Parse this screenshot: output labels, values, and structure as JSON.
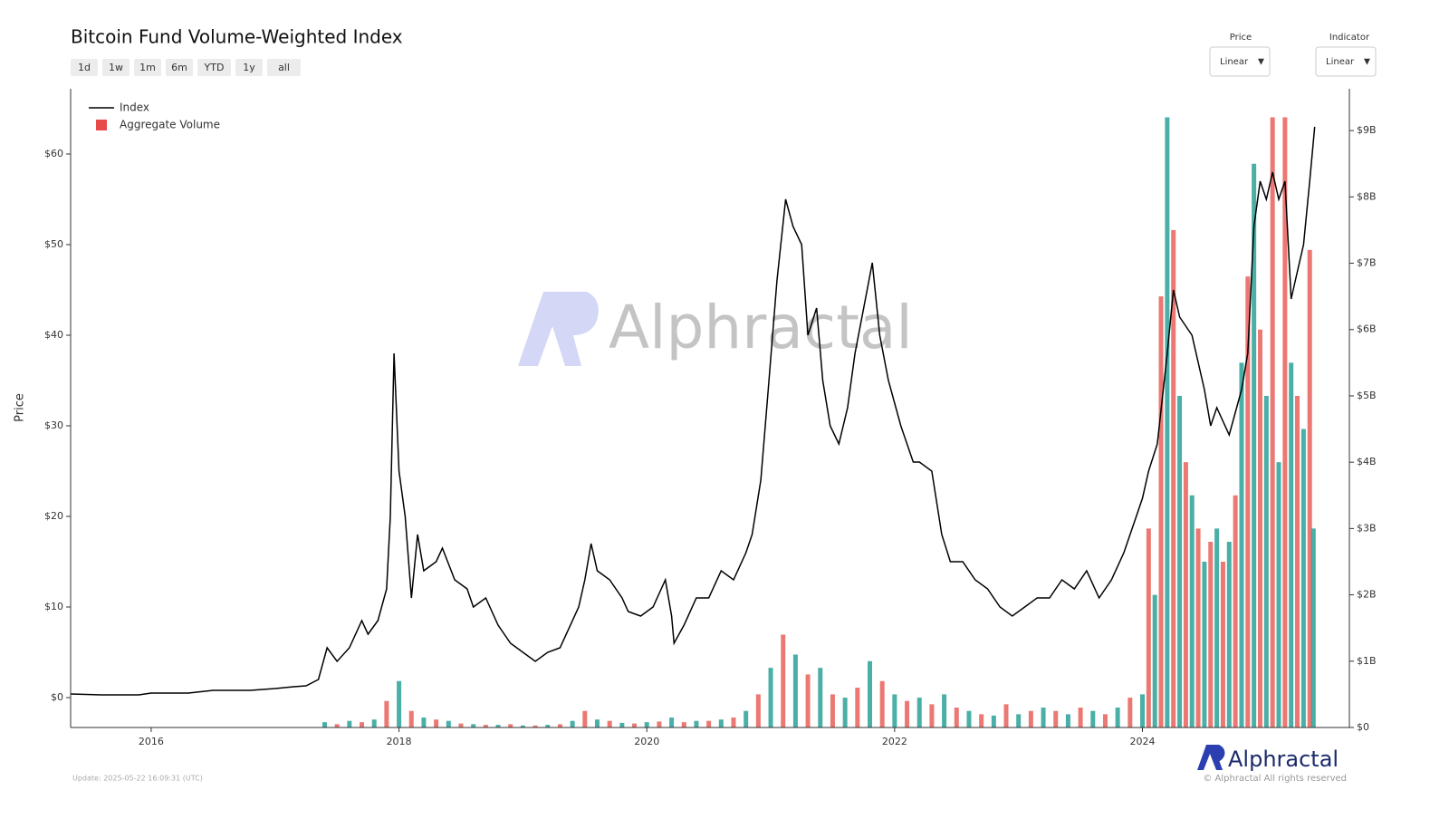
{
  "ui": {
    "range_buttons": [
      "1d",
      "1w",
      "1m",
      "6m",
      "YTD",
      "1y",
      "all"
    ],
    "price_select": {
      "label": "Price",
      "value": "Linear"
    },
    "indicator_select": {
      "label": "Indicator",
      "value": "Linear"
    },
    "watermark": "Alphractal",
    "logo": "Alphractal",
    "copyright": "© Alphractal All rights reserved",
    "update": "Update: 2025-05-22 16:09:31 (UTC)"
  },
  "chart_data": {
    "type": "combo",
    "title": "Bitcoin Fund Volume-Weighted Index",
    "ylabel": "Price",
    "xlim": [
      2015.35,
      2025.67
    ],
    "xticks": [
      2016,
      2018,
      2020,
      2022,
      2024
    ],
    "ylim": [
      -3.3,
      67.2
    ],
    "yticks": [
      {
        "value": 0,
        "label": "$0"
      },
      {
        "value": 10,
        "label": "$10"
      },
      {
        "value": 20,
        "label": "$20"
      },
      {
        "value": 30,
        "label": "$30"
      },
      {
        "value": 40,
        "label": "$40"
      },
      {
        "value": 50,
        "label": "$50"
      },
      {
        "value": 60,
        "label": "$60"
      }
    ],
    "y2lim": [
      0,
      9.63
    ],
    "y2ticks": [
      {
        "value": 0,
        "label": "$0"
      },
      {
        "value": 1,
        "label": "$1B"
      },
      {
        "value": 2,
        "label": "$2B"
      },
      {
        "value": 3,
        "label": "$3B"
      },
      {
        "value": 4,
        "label": "$4B"
      },
      {
        "value": 5,
        "label": "$5B"
      },
      {
        "value": 6,
        "label": "$6B"
      },
      {
        "value": 7,
        "label": "$7B"
      },
      {
        "value": 8,
        "label": "$8B"
      },
      {
        "value": 9,
        "label": "$9B"
      }
    ],
    "legend": "top-left",
    "series": [
      {
        "name": "Index",
        "type": "line",
        "color": "#000000",
        "x": [
          2015.35,
          2015.6,
          2015.9,
          2016.0,
          2016.3,
          2016.5,
          2016.8,
          2017.0,
          2017.15,
          2017.25,
          2017.35,
          2017.42,
          2017.5,
          2017.6,
          2017.7,
          2017.75,
          2017.83,
          2017.9,
          2017.93,
          2017.96,
          2018.0,
          2018.05,
          2018.1,
          2018.15,
          2018.2,
          2018.3,
          2018.35,
          2018.45,
          2018.55,
          2018.6,
          2018.7,
          2018.8,
          2018.9,
          2019.0,
          2019.1,
          2019.2,
          2019.3,
          2019.45,
          2019.5,
          2019.55,
          2019.6,
          2019.7,
          2019.8,
          2019.85,
          2019.95,
          2020.05,
          2020.15,
          2020.2,
          2020.22,
          2020.3,
          2020.4,
          2020.5,
          2020.6,
          2020.7,
          2020.8,
          2020.85,
          2020.92,
          2020.98,
          2021.05,
          2021.12,
          2021.18,
          2021.25,
          2021.3,
          2021.37,
          2021.42,
          2021.48,
          2021.55,
          2021.62,
          2021.68,
          2021.75,
          2021.82,
          2021.88,
          2021.95,
          2022.05,
          2022.15,
          2022.2,
          2022.3,
          2022.38,
          2022.45,
          2022.55,
          2022.65,
          2022.75,
          2022.85,
          2022.95,
          2023.05,
          2023.15,
          2023.25,
          2023.35,
          2023.45,
          2023.55,
          2023.65,
          2023.75,
          2023.85,
          2023.95,
          2024.0,
          2024.05,
          2024.12,
          2024.2,
          2024.25,
          2024.3,
          2024.4,
          2024.5,
          2024.55,
          2024.6,
          2024.7,
          2024.8,
          2024.85,
          2024.9,
          2024.95,
          2025.0,
          2025.05,
          2025.1,
          2025.15,
          2025.2,
          2025.25,
          2025.3,
          2025.35,
          2025.39
        ],
        "values": [
          0.4,
          0.3,
          0.3,
          0.5,
          0.5,
          0.8,
          0.8,
          1.0,
          1.2,
          1.3,
          2.0,
          5.5,
          4.0,
          5.5,
          8.5,
          7.0,
          8.5,
          12,
          20,
          38,
          25,
          20,
          11,
          18,
          14,
          15,
          16.5,
          13,
          12,
          10,
          11,
          8,
          6,
          5,
          4,
          5,
          5.5,
          10,
          13,
          17,
          14,
          13,
          11,
          9.5,
          9,
          10,
          13,
          9,
          6,
          8,
          11,
          11,
          14,
          13,
          16,
          18,
          24,
          34,
          46,
          55,
          52,
          50,
          40,
          43,
          35,
          30,
          28,
          32,
          38,
          43,
          48,
          40,
          35,
          30,
          26,
          26,
          25,
          18,
          15,
          15,
          13,
          12,
          10,
          9,
          10,
          11,
          11,
          13,
          12,
          14,
          11,
          13,
          16,
          20,
          22,
          25,
          28,
          38,
          45,
          42,
          40,
          34,
          30,
          32,
          29,
          34,
          38,
          52,
          57,
          55,
          58,
          55,
          57,
          44,
          47,
          50,
          57,
          63
        ]
      },
      {
        "name": "Aggregate Volume",
        "type": "bar",
        "axis": "y2",
        "color": "#e84a4a",
        "colors": [
          "#2aa198",
          "#e8605a"
        ],
        "x": [
          2017.4,
          2017.5,
          2017.6,
          2017.7,
          2017.8,
          2017.9,
          2018.0,
          2018.1,
          2018.2,
          2018.3,
          2018.4,
          2018.5,
          2018.6,
          2018.7,
          2018.8,
          2018.9,
          2019.0,
          2019.1,
          2019.2,
          2019.3,
          2019.4,
          2019.5,
          2019.6,
          2019.7,
          2019.8,
          2019.9,
          2020.0,
          2020.1,
          2020.2,
          2020.3,
          2020.4,
          2020.5,
          2020.6,
          2020.7,
          2020.8,
          2020.9,
          2021.0,
          2021.1,
          2021.2,
          2021.3,
          2021.4,
          2021.5,
          2021.6,
          2021.7,
          2021.8,
          2021.9,
          2022.0,
          2022.1,
          2022.2,
          2022.3,
          2022.4,
          2022.5,
          2022.6,
          2022.7,
          2022.8,
          2022.9,
          2023.0,
          2023.1,
          2023.2,
          2023.3,
          2023.4,
          2023.5,
          2023.6,
          2023.7,
          2023.8,
          2023.9,
          2024.0,
          2024.05,
          2024.1,
          2024.15,
          2024.2,
          2024.25,
          2024.3,
          2024.35,
          2024.4,
          2024.45,
          2024.5,
          2024.55,
          2024.6,
          2024.65,
          2024.7,
          2024.75,
          2024.8,
          2024.85,
          2024.9,
          2024.95,
          2025.0,
          2025.05,
          2025.1,
          2025.15,
          2025.2,
          2025.25,
          2025.3,
          2025.35,
          2025.38
        ],
        "values": [
          0.08,
          0.05,
          0.1,
          0.08,
          0.12,
          0.4,
          0.7,
          0.25,
          0.15,
          0.12,
          0.1,
          0.06,
          0.05,
          0.04,
          0.04,
          0.05,
          0.03,
          0.03,
          0.04,
          0.05,
          0.1,
          0.25,
          0.12,
          0.1,
          0.07,
          0.06,
          0.08,
          0.09,
          0.15,
          0.08,
          0.1,
          0.1,
          0.12,
          0.15,
          0.25,
          0.5,
          0.9,
          1.4,
          1.1,
          0.8,
          0.9,
          0.5,
          0.45,
          0.6,
          1.0,
          0.7,
          0.5,
          0.4,
          0.45,
          0.35,
          0.5,
          0.3,
          0.25,
          0.2,
          0.18,
          0.35,
          0.2,
          0.25,
          0.3,
          0.25,
          0.2,
          0.3,
          0.25,
          0.2,
          0.3,
          0.45,
          0.5,
          3.0,
          2.0,
          6.5,
          9.2,
          7.5,
          5.0,
          4.0,
          3.5,
          3.0,
          2.5,
          2.8,
          3.0,
          2.5,
          2.8,
          3.5,
          5.5,
          6.8,
          8.5,
          6.0,
          5.0,
          9.2,
          4.0,
          9.2,
          5.5,
          5.0,
          4.5,
          7.2,
          3.0
        ]
      }
    ]
  }
}
